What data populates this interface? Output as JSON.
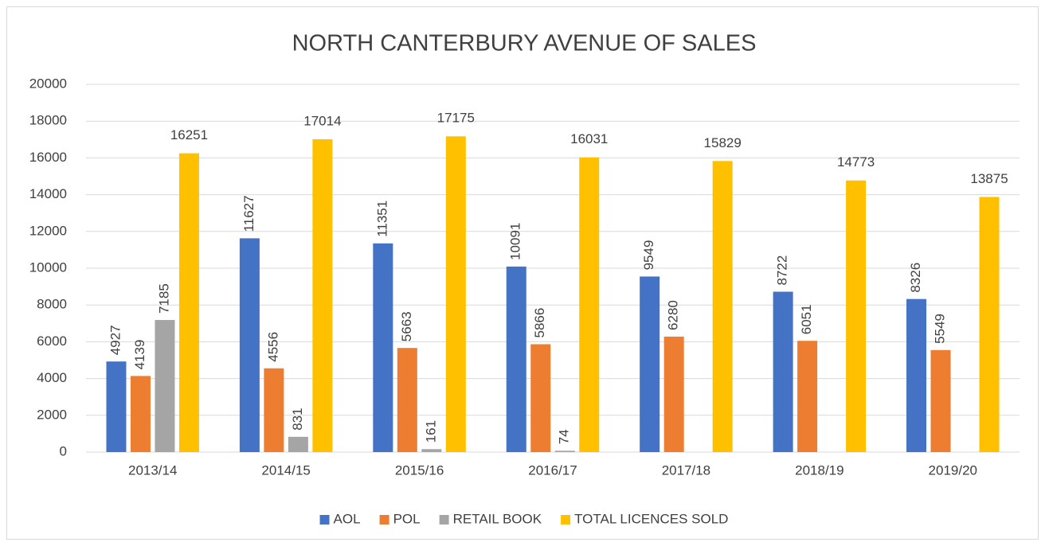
{
  "chart_data": {
    "type": "bar",
    "title": "NORTH CANTERBURY AVENUE OF SALES",
    "categories": [
      "2013/14",
      "2014/15",
      "2015/16",
      "2016/17",
      "2017/18",
      "2018/19",
      "2019/20"
    ],
    "series": [
      {
        "name": "AOL",
        "color": "#4472c4",
        "values": [
          4927,
          11627,
          11351,
          10091,
          9549,
          8722,
          8326
        ]
      },
      {
        "name": "POL",
        "color": "#ed7d31",
        "values": [
          4139,
          4556,
          5663,
          5866,
          6280,
          6051,
          5549
        ]
      },
      {
        "name": "RETAIL BOOK",
        "color": "#a5a5a5",
        "values": [
          7185,
          831,
          161,
          74,
          null,
          null,
          null
        ]
      },
      {
        "name": "TOTAL LICENCES SOLD",
        "color": "#ffc000",
        "values": [
          16251,
          17014,
          17175,
          16031,
          15829,
          14773,
          13875
        ]
      }
    ],
    "ylim": [
      0,
      20000
    ],
    "yticks": [
      0,
      2000,
      4000,
      6000,
      8000,
      10000,
      12000,
      14000,
      16000,
      18000,
      20000
    ],
    "grid": true,
    "legend": "bottom"
  }
}
